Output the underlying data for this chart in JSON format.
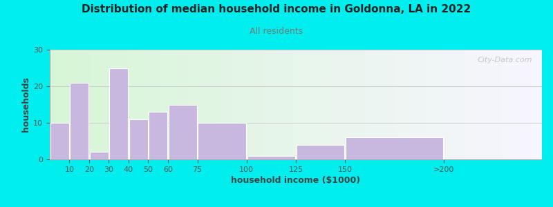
{
  "title": "Distribution of median household income in Goldonna, LA in 2022",
  "subtitle": "All residents",
  "subtitle_color": "#777777",
  "xlabel": "household income ($1000)",
  "ylabel": "households",
  "background_color": "#00EEEE",
  "bar_color": "#c8b8e0",
  "bar_edgecolor": "#ffffff",
  "categories": [
    "10",
    "20",
    "30",
    "40",
    "50",
    "60",
    "75",
    "100",
    "125",
    "150",
    ">200"
  ],
  "values": [
    10,
    21,
    2,
    25,
    11,
    13,
    15,
    10,
    1,
    4,
    6
  ],
  "left_edges": [
    0,
    10,
    20,
    30,
    40,
    50,
    60,
    75,
    100,
    125,
    150,
    200
  ],
  "bar_widths": [
    10,
    10,
    10,
    10,
    10,
    10,
    15,
    25,
    25,
    25,
    50
  ],
  "ylim": [
    0,
    30
  ],
  "yticks": [
    0,
    10,
    20,
    30
  ],
  "xlim_left": 0,
  "xlim_right": 250,
  "tick_positions": [
    10,
    20,
    30,
    40,
    50,
    60,
    75,
    100,
    125,
    150,
    200
  ],
  "tick_labels": [
    "10",
    "20",
    "30",
    "40",
    "50",
    "60",
    "75",
    "100",
    "125",
    "150",
    ">200"
  ],
  "watermark": "City-Data.com",
  "title_fontsize": 11,
  "subtitle_fontsize": 9,
  "axis_label_fontsize": 9,
  "tick_fontsize": 8
}
